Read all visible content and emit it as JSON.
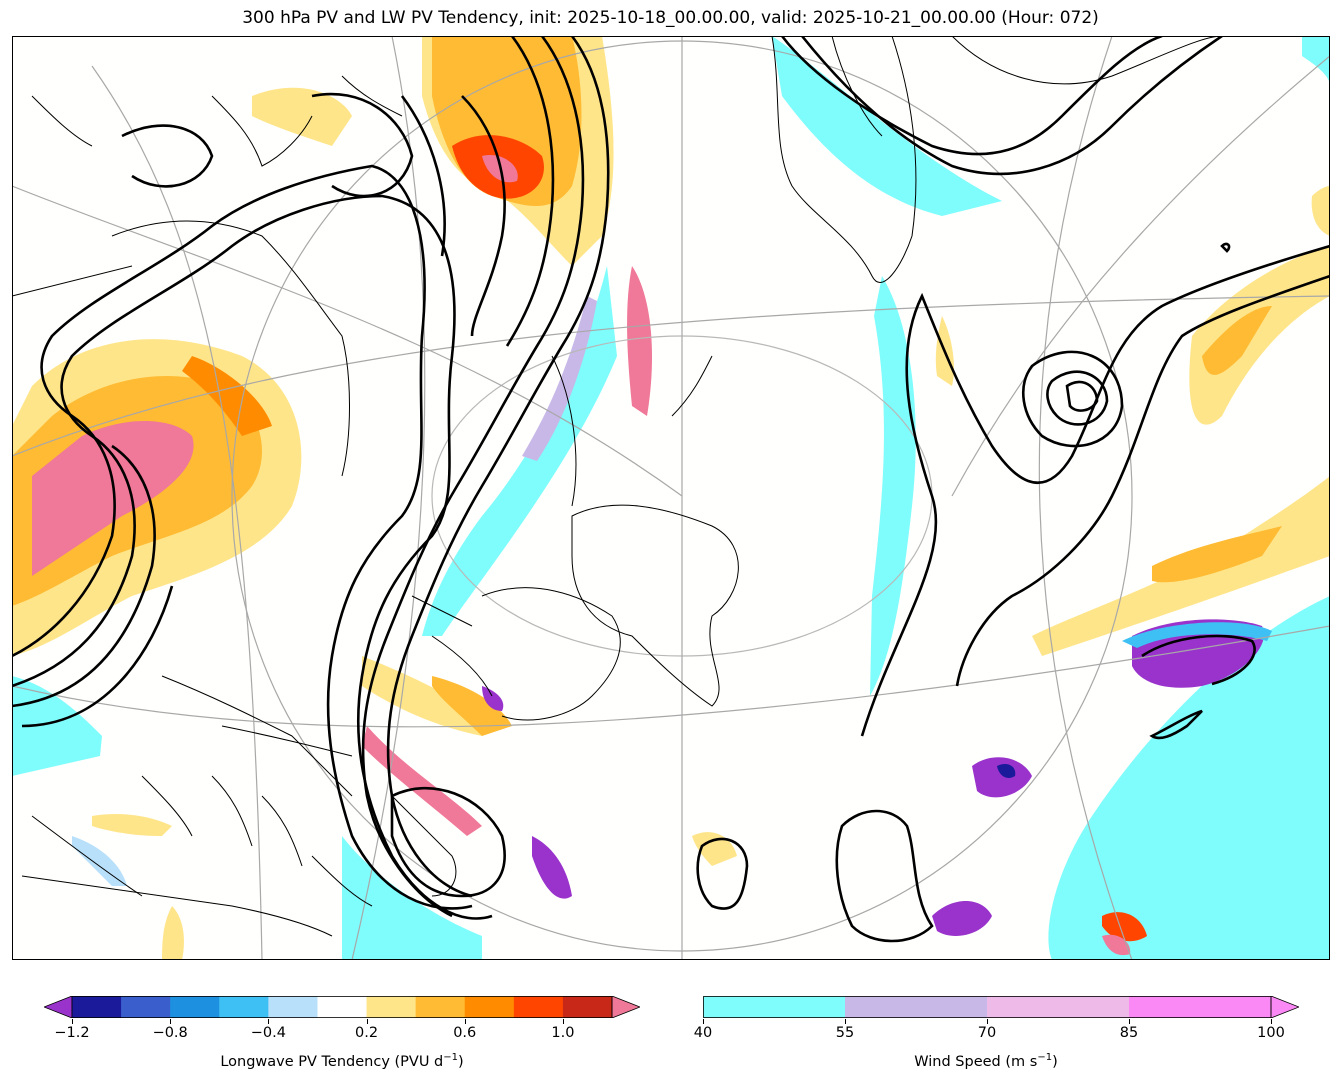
{
  "title": "300 hPa PV and LW PV Tendency, init: 2025-10-18_00.00.00, valid: 2025-10-21_00.00.00 (Hour: 072)",
  "colorbars": {
    "pv_tendency": {
      "label": "Longwave PV Tendency (PVU d$^{-1}$)",
      "label_display": "Longwave PV Tendency (PVU d",
      "label_sup": "−1",
      "label_close": ")",
      "ticks": [
        "−1.2",
        "−0.8",
        "−0.4",
        "0.2",
        "0.6",
        "1.0"
      ],
      "levels": [
        -1.2,
        -1.0,
        -0.8,
        -0.6,
        -0.4,
        -0.2,
        0.2,
        0.4,
        0.6,
        0.8,
        1.0,
        1.2
      ],
      "colors": [
        "#1a1a9a",
        "#3a5fcd",
        "#1e90e0",
        "#3fc0f5",
        "#b8e0fa",
        "#ffffff",
        "#ffe58a",
        "#ffbb33",
        "#ff8c00",
        "#ff4500",
        "#c82818"
      ],
      "under_color": "#9933cc",
      "over_color": "#f07898",
      "extend": "both"
    },
    "wind_speed": {
      "label_display": "Wind Speed (m s",
      "label_sup": "−1",
      "label_close": ")",
      "ticks": [
        "40",
        "55",
        "70",
        "85",
        "100"
      ],
      "levels": [
        40,
        55,
        70,
        85,
        100
      ],
      "colors": [
        "#7ffcfc",
        "#c8b8e8",
        "#eebbe8",
        "#fa88f5"
      ],
      "extend": "max"
    }
  },
  "map": {
    "projection_note": "",
    "contours": "300 hPa PV",
    "coastline_color": "#000000",
    "graticule_color": "#a8a8a8"
  }
}
